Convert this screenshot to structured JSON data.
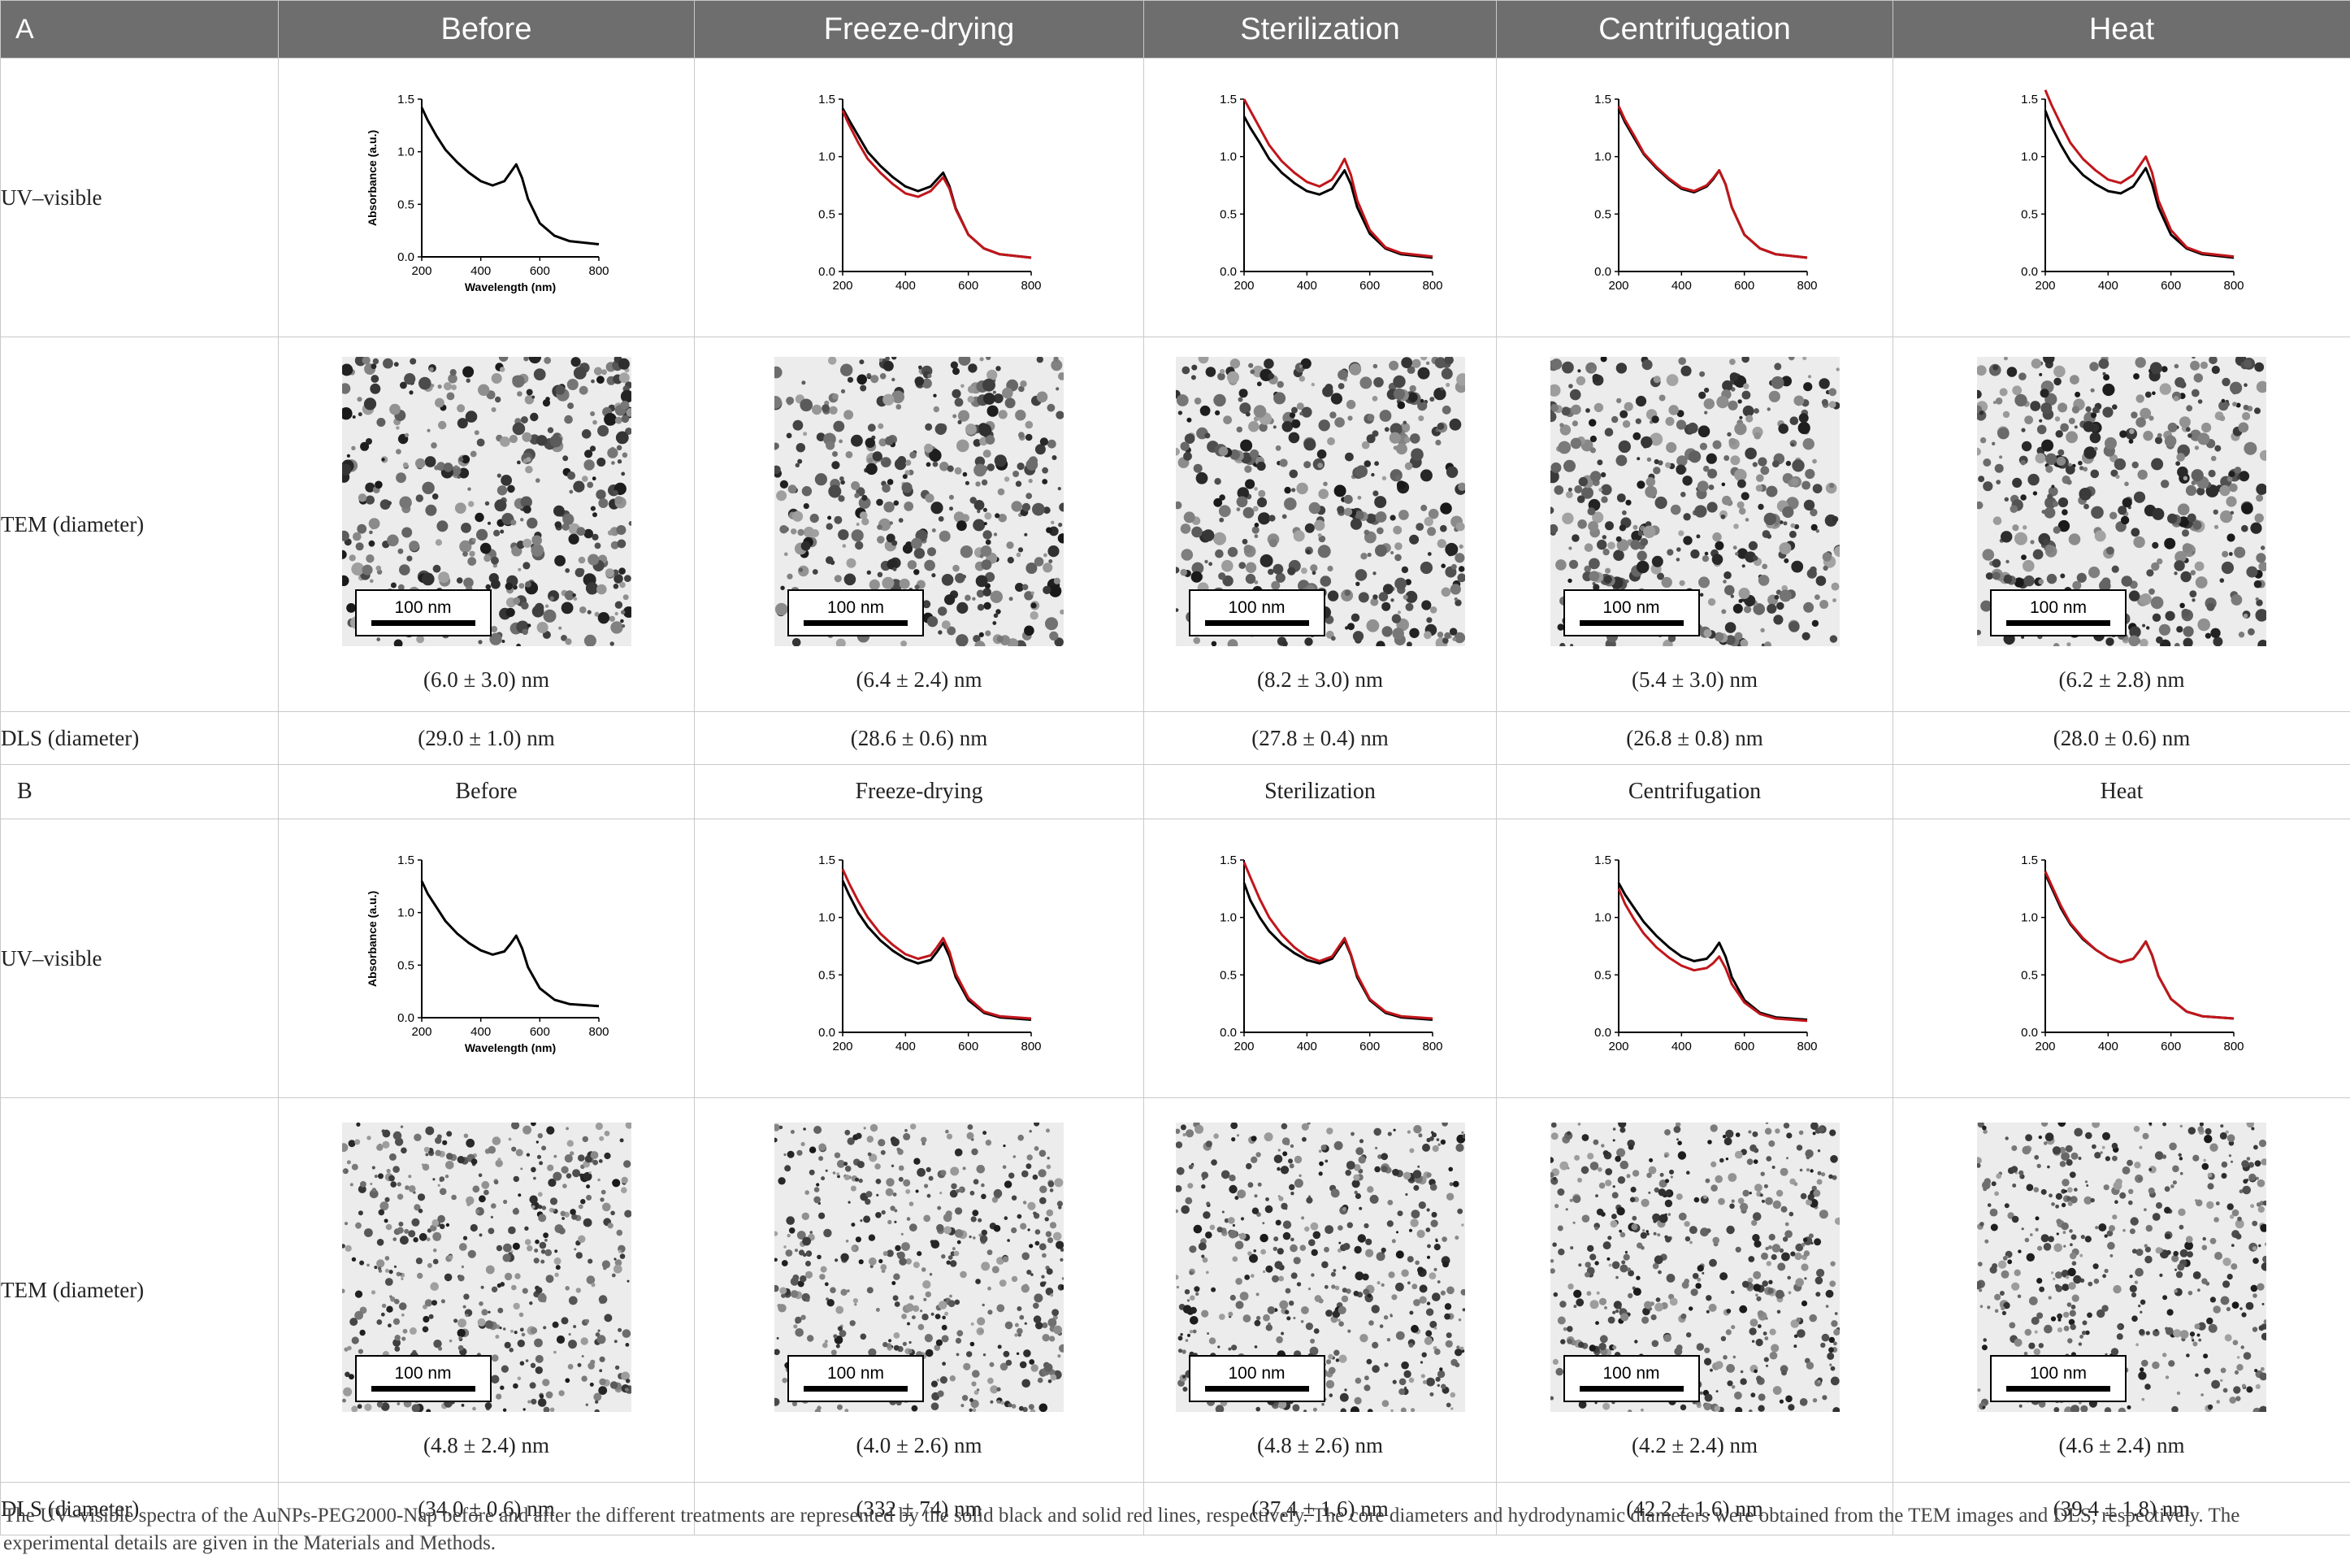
{
  "columns": [
    "Before",
    "Freeze-drying",
    "Sterilization",
    "Centrifugation",
    "Heat"
  ],
  "section_a": {
    "label": "A",
    "uv_label": "UV–visible",
    "tem_label": "TEM (diameter)",
    "dls_label": "DLS (diameter)",
    "tem_values": [
      "(6.0 ± 3.0) nm",
      "(6.4 ± 2.4) nm",
      "(8.2 ± 3.0) nm",
      "(5.4 ± 3.0) nm",
      "(6.2 ± 2.8) nm"
    ],
    "dls_values": [
      "(29.0 ± 1.0) nm",
      "(28.6 ± 0.6) nm",
      "(27.8 ± 0.4) nm",
      "(26.8 ± 0.8) nm",
      "(28.0 ± 0.6) nm"
    ]
  },
  "section_b": {
    "label": "B",
    "uv_label": "UV–visible",
    "tem_label": "TEM (diameter)",
    "dls_label": "DLS (diameter)",
    "tem_values": [
      "(4.8 ± 2.4) nm",
      "(4.0 ± 2.6) nm",
      "(4.8 ± 2.6) nm",
      "(4.2 ± 2.4) nm",
      "(4.6 ± 2.4) nm"
    ],
    "dls_values": [
      "(34.0 ± 0.6) nm",
      "(332 ± 74) nm",
      "(37.4 ± 1.6) nm",
      "(42.2 ± 1.6) nm",
      "(39.4 ± 1.8) nm"
    ]
  },
  "scale_bar_label": "100 nm",
  "axis": {
    "ylabel": "Absorbance (a.u.)",
    "xlabel": "Wavelength (nm)",
    "x_ticks": [
      "200",
      "400",
      "600",
      "800"
    ],
    "y_ticks": [
      "0.0",
      "0.5",
      "1.0",
      "1.5"
    ]
  },
  "colors": {
    "header_bg": "#6e6e6e",
    "before_line": "#000000",
    "after_line": "#c0161b"
  },
  "chart_data": [
    {
      "type": "line",
      "panel": "A-Before",
      "xlim": [
        200,
        800
      ],
      "ylim": [
        0,
        1.5
      ],
      "series": [
        {
          "x": [
            200,
            220,
            250,
            280,
            320,
            360,
            400,
            440,
            480,
            500,
            520,
            540,
            560,
            600,
            650,
            700,
            800
          ],
          "values": [
            1.42,
            1.3,
            1.15,
            1.02,
            0.9,
            0.8,
            0.72,
            0.68,
            0.72,
            0.8,
            0.88,
            0.75,
            0.55,
            0.32,
            0.2,
            0.15,
            0.12
          ]
        }
      ]
    },
    {
      "type": "line",
      "panel": "A-Freeze-drying",
      "xlim": [
        200,
        800
      ],
      "ylim": [
        0,
        1.5
      ],
      "series": [
        {
          "x": [
            200,
            220,
            250,
            280,
            320,
            360,
            400,
            440,
            480,
            500,
            520,
            540,
            560,
            600,
            650,
            700,
            800
          ],
          "values": [
            1.42,
            1.32,
            1.18,
            1.04,
            0.92,
            0.82,
            0.74,
            0.7,
            0.74,
            0.8,
            0.86,
            0.74,
            0.55,
            0.32,
            0.2,
            0.15,
            0.12
          ]
        },
        {
          "x": [
            200,
            220,
            250,
            280,
            320,
            360,
            400,
            440,
            480,
            500,
            520,
            540,
            560,
            600,
            650,
            700,
            800
          ],
          "values": [
            1.4,
            1.28,
            1.12,
            0.98,
            0.86,
            0.76,
            0.68,
            0.65,
            0.7,
            0.76,
            0.82,
            0.72,
            0.54,
            0.32,
            0.2,
            0.15,
            0.12
          ]
        }
      ]
    },
    {
      "type": "line",
      "panel": "A-Sterilization",
      "xlim": [
        200,
        800
      ],
      "ylim": [
        0,
        1.5
      ],
      "series": [
        {
          "x": [
            200,
            220,
            250,
            280,
            320,
            360,
            400,
            440,
            480,
            500,
            520,
            540,
            560,
            600,
            650,
            700,
            800
          ],
          "values": [
            1.35,
            1.25,
            1.12,
            0.98,
            0.86,
            0.77,
            0.7,
            0.67,
            0.72,
            0.8,
            0.88,
            0.76,
            0.56,
            0.33,
            0.2,
            0.15,
            0.12
          ]
        },
        {
          "x": [
            200,
            220,
            250,
            280,
            320,
            360,
            400,
            440,
            480,
            500,
            520,
            540,
            560,
            600,
            650,
            700,
            800
          ],
          "values": [
            1.5,
            1.4,
            1.25,
            1.1,
            0.96,
            0.86,
            0.78,
            0.74,
            0.8,
            0.88,
            0.98,
            0.84,
            0.62,
            0.36,
            0.21,
            0.16,
            0.13
          ]
        }
      ]
    },
    {
      "type": "line",
      "panel": "A-Centrifugation",
      "xlim": [
        200,
        800
      ],
      "ylim": [
        0,
        1.5
      ],
      "series": [
        {
          "x": [
            200,
            220,
            250,
            280,
            320,
            360,
            400,
            440,
            480,
            500,
            520,
            540,
            560,
            600,
            650,
            700,
            800
          ],
          "values": [
            1.42,
            1.3,
            1.16,
            1.02,
            0.9,
            0.8,
            0.72,
            0.69,
            0.74,
            0.8,
            0.88,
            0.76,
            0.56,
            0.32,
            0.2,
            0.15,
            0.12
          ]
        },
        {
          "x": [
            200,
            220,
            250,
            280,
            320,
            360,
            400,
            440,
            480,
            500,
            520,
            540,
            560,
            600,
            650,
            700,
            800
          ],
          "values": [
            1.44,
            1.32,
            1.18,
            1.03,
            0.91,
            0.81,
            0.73,
            0.7,
            0.75,
            0.81,
            0.88,
            0.76,
            0.56,
            0.32,
            0.2,
            0.15,
            0.12
          ]
        }
      ]
    },
    {
      "type": "line",
      "panel": "A-Heat",
      "xlim": [
        200,
        800
      ],
      "ylim": [
        0,
        1.5
      ],
      "series": [
        {
          "x": [
            200,
            220,
            250,
            280,
            320,
            360,
            400,
            440,
            480,
            500,
            520,
            540,
            560,
            600,
            650,
            700,
            800
          ],
          "values": [
            1.4,
            1.26,
            1.1,
            0.96,
            0.84,
            0.76,
            0.7,
            0.68,
            0.74,
            0.82,
            0.9,
            0.76,
            0.56,
            0.32,
            0.2,
            0.15,
            0.12
          ]
        },
        {
          "x": [
            200,
            220,
            250,
            280,
            320,
            360,
            400,
            440,
            480,
            500,
            520,
            540,
            560,
            600,
            650,
            700,
            800
          ],
          "values": [
            1.58,
            1.45,
            1.28,
            1.12,
            0.98,
            0.88,
            0.8,
            0.77,
            0.84,
            0.92,
            1.0,
            0.86,
            0.62,
            0.36,
            0.21,
            0.16,
            0.13
          ]
        }
      ]
    },
    {
      "type": "line",
      "panel": "B-Before",
      "xlim": [
        200,
        800
      ],
      "ylim": [
        0,
        1.5
      ],
      "series": [
        {
          "x": [
            200,
            220,
            250,
            280,
            320,
            360,
            400,
            440,
            480,
            500,
            520,
            540,
            560,
            600,
            650,
            700,
            800
          ],
          "values": [
            1.3,
            1.18,
            1.05,
            0.92,
            0.8,
            0.71,
            0.64,
            0.6,
            0.63,
            0.7,
            0.78,
            0.66,
            0.48,
            0.28,
            0.17,
            0.13,
            0.11
          ]
        }
      ]
    },
    {
      "type": "line",
      "panel": "B-Freeze-drying",
      "xlim": [
        200,
        800
      ],
      "ylim": [
        0,
        1.5
      ],
      "series": [
        {
          "x": [
            200,
            220,
            250,
            280,
            320,
            360,
            400,
            440,
            480,
            500,
            520,
            540,
            560,
            600,
            650,
            700,
            800
          ],
          "values": [
            1.32,
            1.2,
            1.04,
            0.92,
            0.8,
            0.71,
            0.64,
            0.6,
            0.63,
            0.7,
            0.78,
            0.66,
            0.48,
            0.28,
            0.17,
            0.13,
            0.11
          ]
        },
        {
          "x": [
            200,
            220,
            250,
            280,
            320,
            360,
            400,
            440,
            480,
            500,
            520,
            540,
            560,
            600,
            650,
            700,
            800
          ],
          "values": [
            1.42,
            1.3,
            1.14,
            1.0,
            0.86,
            0.76,
            0.68,
            0.64,
            0.67,
            0.74,
            0.82,
            0.7,
            0.51,
            0.3,
            0.18,
            0.14,
            0.12
          ]
        }
      ]
    },
    {
      "type": "line",
      "panel": "B-Sterilization",
      "xlim": [
        200,
        800
      ],
      "ylim": [
        0,
        1.5
      ],
      "series": [
        {
          "x": [
            200,
            220,
            250,
            280,
            320,
            360,
            400,
            440,
            480,
            500,
            520,
            540,
            560,
            600,
            650,
            700,
            800
          ],
          "values": [
            1.3,
            1.15,
            1.0,
            0.88,
            0.77,
            0.69,
            0.63,
            0.6,
            0.64,
            0.72,
            0.8,
            0.67,
            0.48,
            0.28,
            0.17,
            0.13,
            0.11
          ]
        },
        {
          "x": [
            200,
            220,
            250,
            280,
            320,
            360,
            400,
            440,
            480,
            500,
            520,
            540,
            560,
            600,
            650,
            700,
            800
          ],
          "values": [
            1.48,
            1.35,
            1.16,
            1.0,
            0.85,
            0.74,
            0.66,
            0.62,
            0.66,
            0.74,
            0.82,
            0.68,
            0.5,
            0.29,
            0.18,
            0.14,
            0.12
          ]
        }
      ]
    },
    {
      "type": "line",
      "panel": "B-Centrifugation",
      "xlim": [
        200,
        800
      ],
      "ylim": [
        0,
        1.5
      ],
      "series": [
        {
          "x": [
            200,
            220,
            250,
            280,
            320,
            360,
            400,
            440,
            480,
            500,
            520,
            540,
            560,
            600,
            650,
            700,
            800
          ],
          "values": [
            1.3,
            1.2,
            1.08,
            0.96,
            0.84,
            0.74,
            0.66,
            0.62,
            0.64,
            0.7,
            0.78,
            0.66,
            0.48,
            0.28,
            0.17,
            0.13,
            0.11
          ]
        },
        {
          "x": [
            200,
            220,
            250,
            280,
            320,
            360,
            400,
            440,
            480,
            500,
            520,
            540,
            560,
            600,
            650,
            700,
            800
          ],
          "values": [
            1.25,
            1.12,
            0.98,
            0.86,
            0.74,
            0.65,
            0.58,
            0.54,
            0.56,
            0.6,
            0.66,
            0.56,
            0.42,
            0.26,
            0.16,
            0.12,
            0.1
          ]
        }
      ]
    },
    {
      "type": "line",
      "panel": "B-Heat",
      "xlim": [
        200,
        800
      ],
      "ylim": [
        0,
        1.5
      ],
      "series": [
        {
          "x": [
            200,
            220,
            250,
            280,
            320,
            360,
            400,
            440,
            480,
            500,
            520,
            540,
            560,
            600,
            650,
            700,
            800
          ],
          "values": [
            1.38,
            1.26,
            1.08,
            0.94,
            0.81,
            0.72,
            0.65,
            0.61,
            0.64,
            0.71,
            0.79,
            0.67,
            0.49,
            0.29,
            0.18,
            0.14,
            0.12
          ]
        },
        {
          "x": [
            200,
            220,
            250,
            280,
            320,
            360,
            400,
            440,
            480,
            500,
            520,
            540,
            560,
            600,
            650,
            700,
            800
          ],
          "values": [
            1.4,
            1.28,
            1.1,
            0.95,
            0.82,
            0.72,
            0.65,
            0.61,
            0.64,
            0.71,
            0.79,
            0.67,
            0.49,
            0.29,
            0.18,
            0.14,
            0.12
          ]
        }
      ]
    }
  ],
  "footnote": "The UV–visible spectra of the AuNPs-PEG2000-Nap before and after the different treatments are represented by the solid black and solid red lines, respectively. The core diameters and hydrodynamic diameters were obtained from the TEM images and DLS, respectively. The experimental details are given in the Materials and Methods."
}
